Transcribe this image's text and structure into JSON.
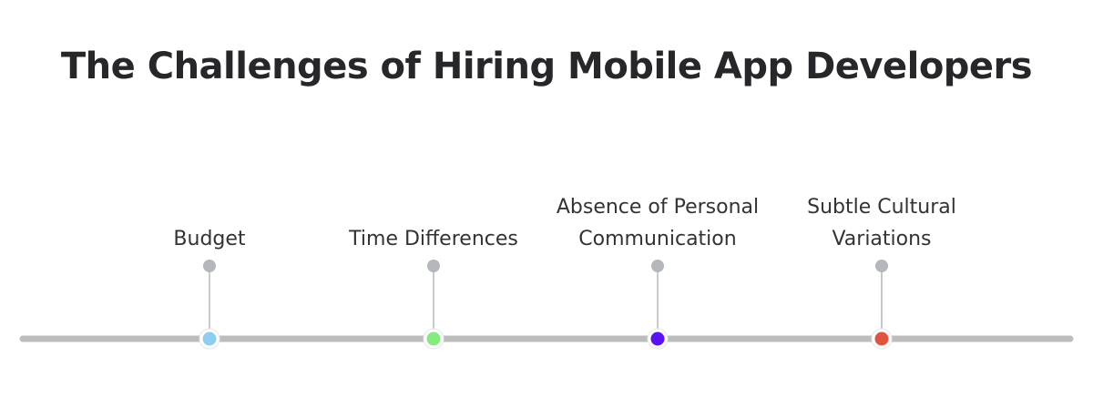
{
  "title": "The Challenges of Hiring Mobile App Developers",
  "colors": {
    "title": "#27272b",
    "track": "#bcbcbc",
    "connector": "#b4b8bd",
    "pin": "#b4b8bd",
    "label": "#333333"
  },
  "milestones": [
    {
      "label_lines": [
        "Budget"
      ],
      "dot_color": "#8ecdf2"
    },
    {
      "label_lines": [
        "Time Differences"
      ],
      "dot_color": "#84ec7e"
    },
    {
      "label_lines": [
        "Absence of Personal",
        "Communication"
      ],
      "dot_color": "#5b12f5"
    },
    {
      "label_lines": [
        "Subtle Cultural",
        "Variations"
      ],
      "dot_color": "#e05440"
    }
  ]
}
